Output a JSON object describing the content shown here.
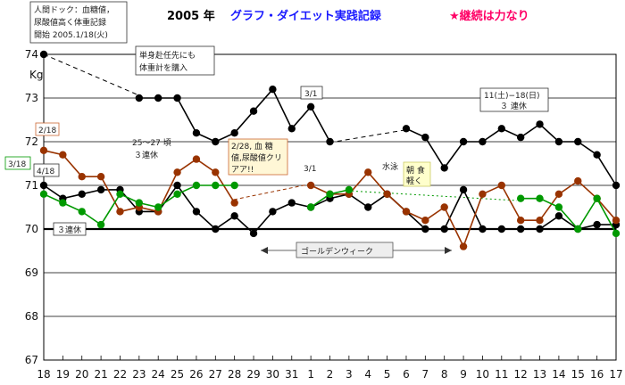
{
  "chart_data": {
    "type": "line",
    "title": {
      "year": "2005 年",
      "main": "グラフ・ダイエット実践記録",
      "slogan": "★継続は力なり"
    },
    "ylabel": "Kg",
    "ylim": [
      67,
      74
    ],
    "yticks": [
      67,
      68,
      69,
      70,
      71,
      72,
      73,
      74
    ],
    "categories": [
      "18",
      "19",
      "20",
      "21",
      "22",
      "23",
      "24",
      "25",
      "26",
      "27",
      "28",
      "29",
      "30",
      "31",
      "1",
      "2",
      "3",
      "4",
      "5",
      "6",
      "7",
      "8",
      "9",
      "10",
      "11",
      "12",
      "13",
      "14",
      "15",
      "16",
      "17"
    ],
    "grid": "horizontal",
    "series": [
      {
        "color": "#000000",
        "values": [
          74.0,
          null,
          null,
          null,
          null,
          73.0,
          73.0,
          73.0,
          72.2,
          72.0,
          72.2,
          72.7,
          73.2,
          72.3,
          72.8,
          72.0,
          null,
          null,
          null,
          72.3,
          72.1,
          71.4,
          72.0,
          72.0,
          72.3,
          72.1,
          72.4,
          72.0,
          72.0,
          71.7,
          71.0
        ]
      },
      {
        "color": "#000000",
        "values": [
          71.0,
          70.7,
          70.8,
          70.9,
          70.9,
          70.4,
          70.4,
          71.0,
          70.4,
          70.0,
          70.3,
          69.9,
          70.4,
          70.6,
          70.5,
          70.7,
          70.8,
          70.5,
          70.8,
          70.4,
          70.0,
          70.0,
          70.9,
          70.0,
          70.0,
          70.0,
          70.0,
          70.3,
          70.0,
          70.1,
          70.1
        ]
      },
      {
        "color": "#993300",
        "values": [
          71.8,
          71.7,
          71.2,
          71.2,
          70.4,
          70.5,
          70.4,
          71.3,
          71.6,
          71.3,
          70.6,
          null,
          null,
          null,
          71.0,
          70.8,
          70.8,
          71.3,
          70.8,
          70.4,
          70.2,
          70.5,
          69.6,
          70.8,
          71.0,
          70.2,
          70.2,
          70.8,
          71.1,
          70.7,
          70.2
        ]
      },
      {
        "color": "#009900",
        "values": [
          70.8,
          70.6,
          70.4,
          70.1,
          70.8,
          70.6,
          70.5,
          70.8,
          71.0,
          71.0,
          71.0,
          null,
          null,
          null,
          70.5,
          70.8,
          70.9,
          null,
          null,
          null,
          null,
          null,
          null,
          null,
          null,
          70.7,
          70.7,
          70.5,
          70.0,
          70.7,
          69.9
        ]
      }
    ],
    "annotations": {
      "start_note": [
        "人間ドック：血糖値，",
        "尿酸値高く体重記録",
        "開始 2005.1/18(火)"
      ],
      "scale_note": [
        "単身赴任先にも",
        "体重計を購入"
      ],
      "date_0218": "2/18",
      "date_0318": "3/18",
      "date_0418": "4/18",
      "consecutive_left": "３連休",
      "feb_25_27": [
        "25〜27 頃",
        "３連休"
      ],
      "feb_28_note": [
        "2/28, 血 糖",
        "値,尿酸値クリ",
        "アア!!"
      ],
      "date_0301_top": "3/1",
      "date_0301_mid": "3/1",
      "swim_note": "水泳",
      "breakfast_note": [
        "朝 食",
        "軽く"
      ],
      "golden_week": "ゴールデンウィーク",
      "holiday_note": [
        "11(土)−18(日)",
        "３ 連休"
      ]
    }
  }
}
